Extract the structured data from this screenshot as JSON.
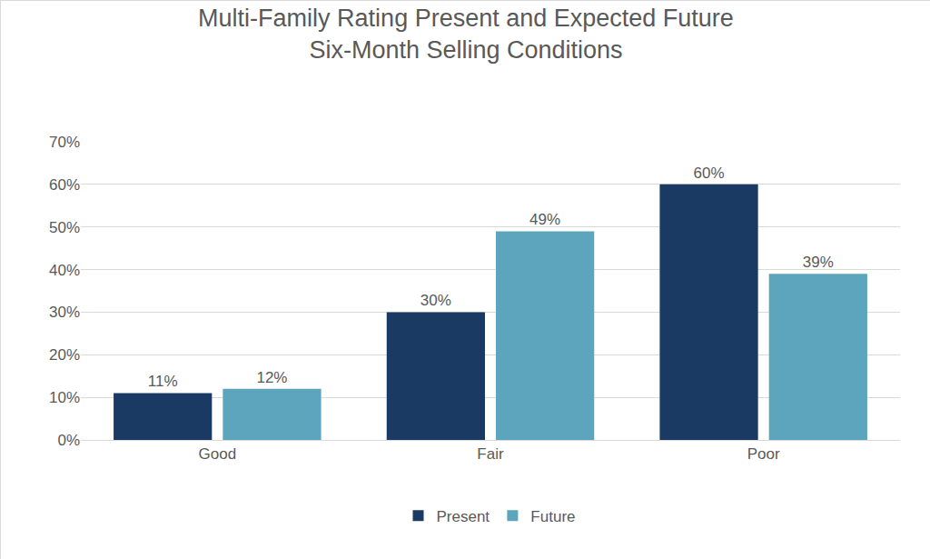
{
  "chart_data": {
    "type": "bar",
    "title": "Multi-Family Rating Present and Expected Future\nSix-Month Selling Conditions",
    "categories": [
      "Good",
      "Fair",
      "Poor"
    ],
    "series": [
      {
        "name": "Present",
        "color": "#1a3a63",
        "values": [
          11,
          30,
          60
        ],
        "value_labels": [
          "11%",
          "30%",
          "60%"
        ]
      },
      {
        "name": "Future",
        "color": "#5ca5bc",
        "values": [
          12,
          49,
          39
        ],
        "value_labels": [
          "12%",
          "49%",
          "39%"
        ]
      }
    ],
    "ylim": [
      0,
      70
    ],
    "yticks": [
      {
        "value": 0,
        "label": "0%"
      },
      {
        "value": 10,
        "label": "10%"
      },
      {
        "value": 20,
        "label": "20%"
      },
      {
        "value": 30,
        "label": "30%"
      },
      {
        "value": 40,
        "label": "40%"
      },
      {
        "value": 50,
        "label": "50%"
      },
      {
        "value": 60,
        "label": "60%"
      },
      {
        "value": 70,
        "label": "70%"
      }
    ],
    "grid": true,
    "legend": "bottom",
    "data_labels": true
  }
}
